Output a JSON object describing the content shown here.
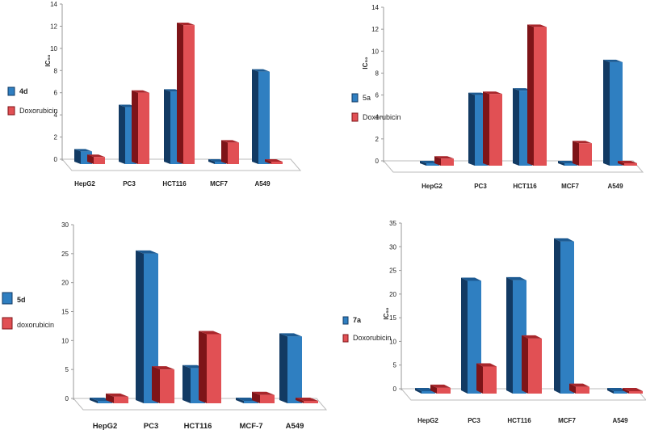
{
  "colors": {
    "series_a": "#2f7fc1",
    "series_a_dark": "#123a63",
    "series_a_top": "#1c5a92",
    "series_b": "#e15054",
    "series_b_dark": "#7e1418",
    "series_b_top": "#a8262b"
  },
  "chart_data": [
    {
      "type": "bar",
      "ylabel": "IC₅₀",
      "categories": [
        "HepG2",
        "PC3",
        "HCT116",
        "MCF7",
        "A549"
      ],
      "ylim": [
        0,
        14
      ],
      "yticks": [
        0,
        2,
        4,
        6,
        8,
        10,
        12,
        14
      ],
      "series": [
        {
          "name": "4d",
          "values": [
            0.7,
            4.7,
            6.1,
            0,
            7.9
          ]
        },
        {
          "name": "Doxorubicin",
          "values": [
            0.2,
            6.0,
            12.1,
            1.5,
            0
          ]
        }
      ]
    },
    {
      "type": "bar",
      "ylabel": "IC₅₀",
      "categories": [
        "HepG2",
        "PC3",
        "HCT116",
        "MCF7",
        "A549"
      ],
      "ylim": [
        0,
        14
      ],
      "yticks": [
        0,
        2,
        4,
        6,
        8,
        10,
        12,
        14
      ],
      "series": [
        {
          "name": "5a",
          "values": [
            0,
            6.0,
            6.4,
            0,
            9.0
          ]
        },
        {
          "name": "Doxorubicin",
          "values": [
            0.2,
            6.1,
            12.2,
            1.6,
            0
          ]
        }
      ]
    },
    {
      "type": "bar",
      "ylabel": "",
      "categories": [
        "HepG2",
        "PC3",
        "HCT116",
        "MCF-7",
        "A549"
      ],
      "ylim": [
        0,
        30
      ],
      "yticks": [
        0,
        5,
        10,
        15,
        20,
        25,
        30
      ],
      "series": [
        {
          "name": "5d",
          "values": [
            0,
            25.0,
            5.2,
            0,
            10.7
          ]
        },
        {
          "name": "doxorubicin",
          "values": [
            0.3,
            5.0,
            11.1,
            0.6,
            0
          ]
        }
      ]
    },
    {
      "type": "bar",
      "ylabel": "IC₅₀",
      "categories": [
        "HepG2",
        "PC3",
        "HCT116",
        "MCF7",
        "A549"
      ],
      "ylim": [
        0,
        35
      ],
      "yticks": [
        0,
        5,
        10,
        15,
        20,
        25,
        30,
        35
      ],
      "series": [
        {
          "name": "7a",
          "values": [
            0,
            22.8,
            22.9,
            31.1,
            0
          ]
        },
        {
          "name": "Doxorubicin",
          "values": [
            0.2,
            4.7,
            10.6,
            0.4,
            0
          ]
        }
      ]
    }
  ]
}
